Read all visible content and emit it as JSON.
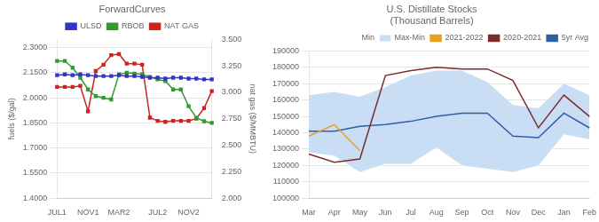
{
  "chart_data": [
    {
      "type": "line",
      "title": "ForwardCurves",
      "categories": [
        "JUL1",
        null,
        null,
        null,
        "NOV1",
        null,
        null,
        null,
        "MAR2",
        null,
        null,
        null,
        null,
        "JUL2",
        null,
        null,
        null,
        "NOV2",
        null,
        null,
        null
      ],
      "y_label": "fuels ($/gal)",
      "y2_label": "nat gas ($/MMBTU)",
      "ylim": [
        1.4,
        2.35
      ],
      "yticks": [
        {
          "value": 1.4,
          "label": "1.4000"
        },
        {
          "value": 1.55,
          "label": "1.5500"
        },
        {
          "value": 1.7,
          "label": "1.7000"
        },
        {
          "value": 1.85,
          "label": "1.8500"
        },
        {
          "value": 2.0,
          "label": "2.0000"
        },
        {
          "value": 2.15,
          "label": "2.1500"
        },
        {
          "value": 2.3,
          "label": "2.3000"
        }
      ],
      "y2lim": [
        2.0,
        3.5
      ],
      "y2ticks": [
        {
          "value": 2.0,
          "label": "2.000"
        },
        {
          "value": 2.25,
          "label": "2.250"
        },
        {
          "value": 2.5,
          "label": "2.500"
        },
        {
          "value": 2.75,
          "label": "2.750"
        },
        {
          "value": 3.0,
          "label": "3.000"
        },
        {
          "value": 3.25,
          "label": "3.250"
        },
        {
          "value": 3.5,
          "label": "3.500"
        }
      ],
      "grid": true,
      "legend": "upper center",
      "series": [
        {
          "name": "ULSD",
          "color": "#3333cc",
          "marker": "square",
          "values": [
            2.135,
            2.14,
            2.135,
            2.14,
            2.135,
            2.13,
            2.13,
            2.13,
            2.135,
            2.13,
            2.13,
            2.125,
            2.12,
            2.12,
            2.115,
            2.12,
            2.12,
            2.115,
            2.115,
            2.11,
            2.11
          ]
        },
        {
          "name": "RBOB",
          "color": "#339933",
          "marker": "square",
          "values": [
            2.22,
            2.22,
            2.18,
            2.12,
            2.05,
            2.01,
            2.0,
            1.99,
            2.14,
            2.15,
            2.145,
            2.14,
            2.125,
            2.11,
            2.1,
            2.05,
            2.05,
            1.95,
            1.88,
            1.86,
            1.85
          ]
        },
        {
          "name": "NAT GAS",
          "color": "#cc2222",
          "marker": "square",
          "axis": "y2",
          "values": [
            3.05,
            3.05,
            3.05,
            3.06,
            2.82,
            3.2,
            3.26,
            3.35,
            3.36,
            3.27,
            3.27,
            3.26,
            2.76,
            2.73,
            2.72,
            2.73,
            2.73,
            2.73,
            2.75,
            2.85,
            3.01
          ]
        }
      ]
    },
    {
      "type": "line",
      "title": "U.S. Distillate Stocks\n(Thousand Barrels)",
      "categories": [
        "Mar",
        "Apr",
        "May",
        "Jun",
        "Jul",
        "Aug",
        "Sep",
        "Oct",
        "Nov",
        "Dec",
        "Jan",
        "Feb"
      ],
      "ylim": [
        100000,
        190000
      ],
      "yticks": [
        100000,
        110000,
        120000,
        130000,
        140000,
        150000,
        160000,
        170000,
        180000,
        190000
      ],
      "grid": true,
      "legend": "upper right",
      "series": [
        {
          "name": "Min",
          "color": "#ffffff",
          "values": [
            128000,
            126000,
            116000,
            121000,
            121000,
            131000,
            120000,
            118000,
            116000,
            120000,
            139000,
            136000
          ]
        },
        {
          "name": "Max-Min",
          "type": "area",
          "color": "#c9ddf5",
          "values": [
            163000,
            165000,
            162000,
            168000,
            175000,
            178000,
            178000,
            171000,
            157000,
            155000,
            170000,
            163000
          ]
        },
        {
          "name": "2021-2022",
          "color": "#e8a020",
          "values": [
            138000,
            145000,
            129000,
            null,
            null,
            null,
            null,
            null,
            null,
            null,
            null,
            null
          ]
        },
        {
          "name": "2020-2021",
          "color": "#7b2c2c",
          "values": [
            127000,
            122000,
            124000,
            175000,
            178000,
            180000,
            179000,
            179000,
            172000,
            143000,
            163000,
            150000
          ]
        },
        {
          "name": "5yr Avg",
          "color": "#2e5fa3",
          "values": [
            141000,
            141000,
            144000,
            145000,
            147000,
            150000,
            152000,
            152000,
            138000,
            137000,
            152000,
            143000
          ]
        }
      ]
    }
  ]
}
